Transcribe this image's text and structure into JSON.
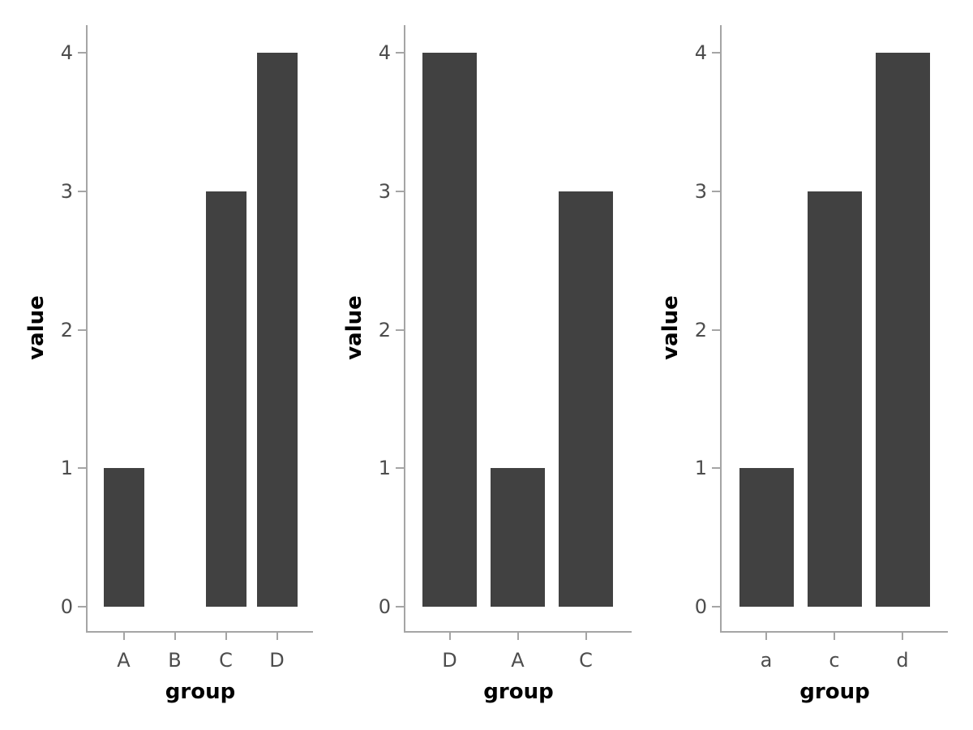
{
  "figure": {
    "background": "#ffffff",
    "bar_color": "#414141",
    "axis_line_color": "#a5a5a5",
    "tick_label_color": "#4d4d4d",
    "axis_title_color": "#000000"
  },
  "chart_data": [
    {
      "type": "bar",
      "panel": "left",
      "title": "",
      "xlabel": "group",
      "ylabel": "value",
      "categories": [
        "A",
        "B",
        "C",
        "D"
      ],
      "values": [
        1,
        0,
        3,
        4
      ],
      "yticks": [
        0,
        1,
        2,
        3,
        4
      ],
      "ylim": [
        0,
        4
      ],
      "grid": false,
      "legend": false
    },
    {
      "type": "bar",
      "panel": "middle",
      "title": "",
      "xlabel": "group",
      "ylabel": "value",
      "categories": [
        "D",
        "A",
        "C"
      ],
      "values": [
        4,
        1,
        3
      ],
      "yticks": [
        0,
        1,
        2,
        3,
        4
      ],
      "ylim": [
        0,
        4
      ],
      "grid": false,
      "legend": false
    },
    {
      "type": "bar",
      "panel": "right",
      "title": "",
      "xlabel": "group",
      "ylabel": "value",
      "categories": [
        "a",
        "c",
        "d"
      ],
      "values": [
        1,
        3,
        4
      ],
      "yticks": [
        0,
        1,
        2,
        3,
        4
      ],
      "ylim": [
        0,
        4
      ],
      "grid": false,
      "legend": false
    }
  ]
}
